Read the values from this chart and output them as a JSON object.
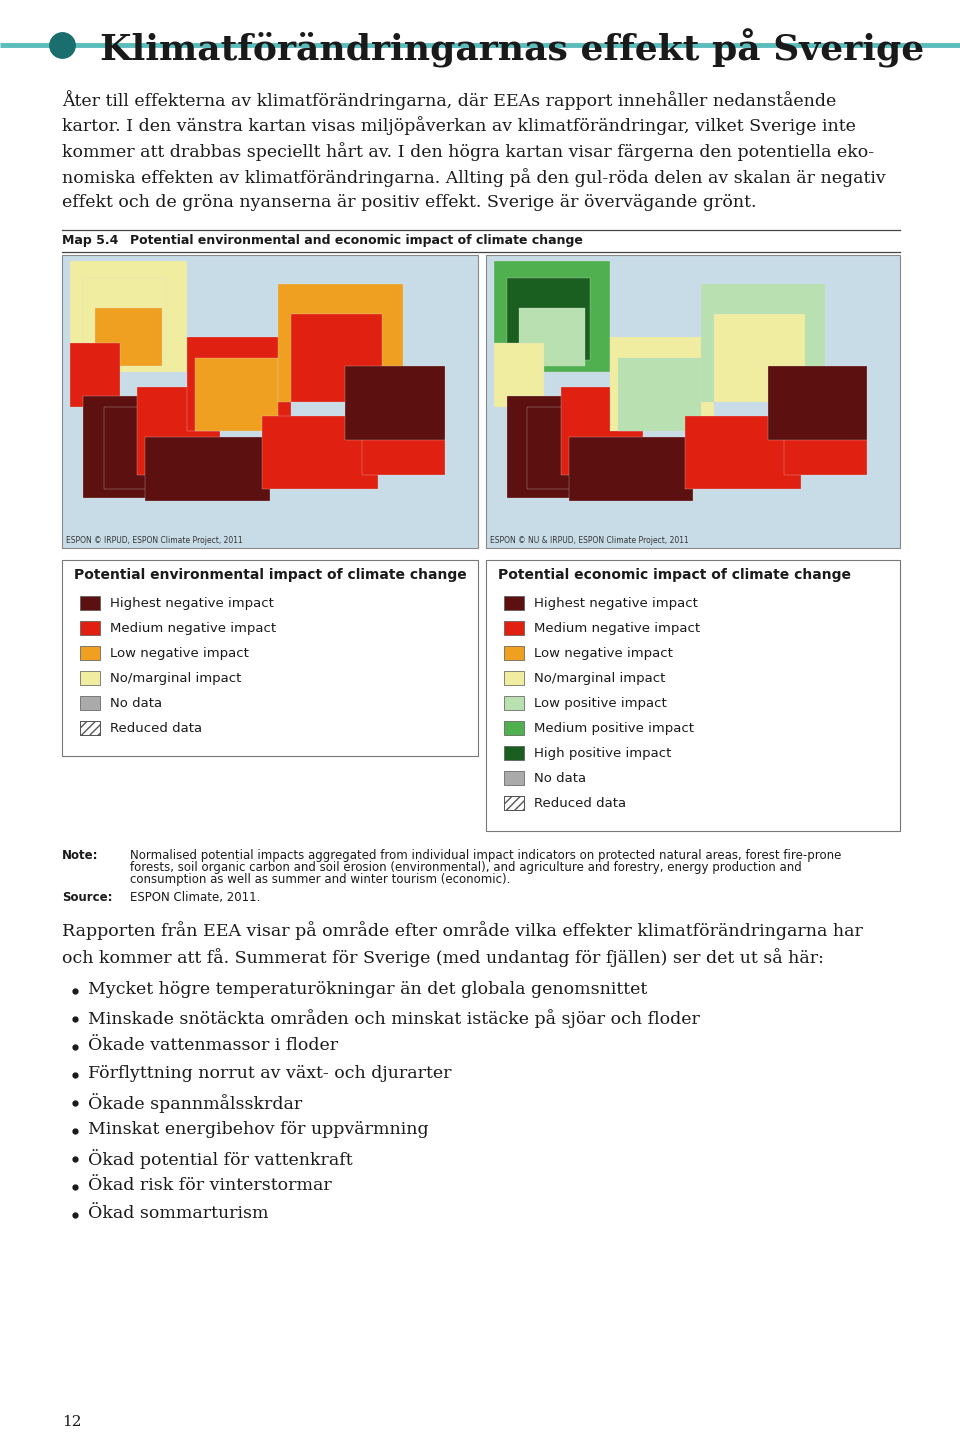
{
  "title": "Klimatförändringarnas effekt på Sverige",
  "title_color": "#1a1a1a",
  "title_fontsize": 26,
  "header_line_color": "#5bbcbc",
  "header_dot_color": "#1a6e6e",
  "body_para": "Åter till effekterna av klimatförändringarna, där EEAs rapport innehåller nedanstående kartor. I den vänstra kartan visas miljöpåverkan av klimatförändringar, vilket Sverige inte kommer att drabbas speciellt hårt av. I den högra kartan visar färgerna den potentiella eko-nomiska effekten av klimatförändringarna. Allting på den gul-röda delen av skalan är negativ effekt och de gröna nyanserna är positiv effekt. Sverige är övervägande grönt.",
  "body_lines": [
    "Åter till effekterna av klimatförändringarna, där EEAs rapport innehåller nedanstående",
    "kartor. I den vänstra kartan visas miljöpåverkan av klimatförändringar, vilket Sverige inte",
    "kommer att drabbas speciellt hårt av. I den högra kartan visar färgerna den potentiella eko-",
    "nomiska effekten av klimatförändringarna. Allting på den gul-röda delen av skalan är negativ",
    "effekt och de gröna nyanserna är positiv effekt. Sverige är övervägande grönt."
  ],
  "map_label": "Map 5.4",
  "map_title": "Potential environmental and economic impact of climate change",
  "env_legend_title": "Potential environmental impact of climate change",
  "env_legend_items": [
    {
      "color": "#5c1010",
      "label": "Highest negative impact"
    },
    {
      "color": "#e02010",
      "label": "Medium negative impact"
    },
    {
      "color": "#f0a020",
      "label": "Low negative impact"
    },
    {
      "color": "#f0eda0",
      "label": "No/marginal impact"
    },
    {
      "color": "#aaaaaa",
      "label": "No data"
    },
    {
      "color": "hatched",
      "label": "Reduced data"
    }
  ],
  "econ_legend_title": "Potential economic impact of climate change",
  "econ_legend_items": [
    {
      "color": "#5c1010",
      "label": "Highest negative impact"
    },
    {
      "color": "#e02010",
      "label": "Medium negative impact"
    },
    {
      "color": "#f0a020",
      "label": "Low negative impact"
    },
    {
      "color": "#f0eda0",
      "label": "No/marginal impact"
    },
    {
      "color": "#b8e0b0",
      "label": "Low positive impact"
    },
    {
      "color": "#50b050",
      "label": "Medium positive impact"
    },
    {
      "color": "#1a5e20",
      "label": "High positive impact"
    },
    {
      "color": "#aaaaaa",
      "label": "No data"
    },
    {
      "color": "hatched",
      "label": "Reduced data"
    }
  ],
  "note_label": "Note:",
  "note_lines": [
    "Normalised potential impacts aggregated from individual impact indicators on protected natural areas, forest fire-prone",
    "forests, soil organic carbon and soil erosion (environmental), and agriculture and forestry, energy production and",
    "consumption as well as summer and winter tourism (economic)."
  ],
  "source_label": "Source:",
  "source_text": "ESPON Climate, 2011.",
  "intro_lines": [
    "Rapporten från EEA visar på område efter område vilka effekter klimatförändringarna har",
    "och kommer att få. Summerat för Sverige (med undantag för fjällen) ser det ut så här:"
  ],
  "bullet_items": [
    "Mycket högre temperaturökningar än det globala genomsnittet",
    "Minskade snötäckta områden och minskat istäcke på sjöar och floder",
    "Ökade vattenmassor i floder",
    "Förflyttning norrut av växt- och djurarter",
    "Ökade spannmålsskrdar",
    "Minskat energibehov för uppvärmning",
    "Ökad potential för vattenkraft",
    "Ökad risk för vinterstormar",
    "Ökad sommarturism"
  ],
  "bullet_items_correct": [
    "Mycket högre temperaturökningar än det globala genomsnittet",
    "Minskade snötäckta områden och minskat istäcke på sjöar och floder",
    "Ökade vattenmassor i floder",
    "Förflyttning norrut av växt- och djurarter",
    "Ökade spannmålsskrdar",
    "Minskat energibehov för uppvärmning",
    "Ökad potential för vattenkraft",
    "Ökad risk för vinterstormar",
    "Ökad sommarturism"
  ],
  "page_number": "12",
  "bg_color": "#ffffff",
  "text_color": "#1a1a1a",
  "body_fontsize": 12.5,
  "legend_fontsize": 9.5,
  "note_fontsize": 8.5,
  "map_espon_left": "ESPON © IRPUD, ESPON Climate Project, 2011",
  "map_espon_right": "ESPON © NU & IRPUD, ESPON Climate Project, 2011"
}
